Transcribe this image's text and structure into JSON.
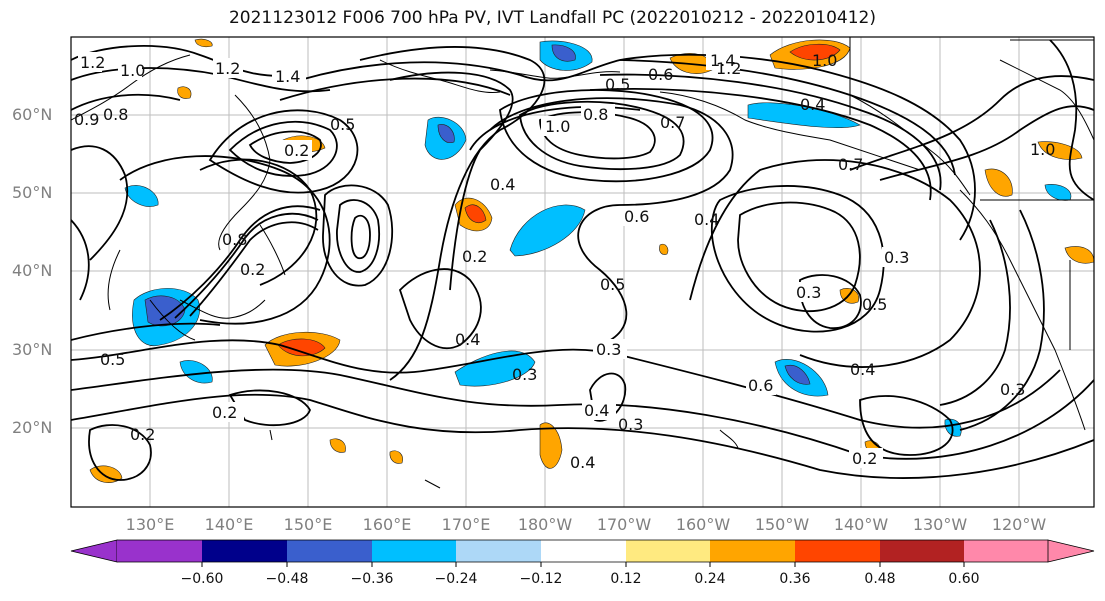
{
  "title": "2021123012 F006 700 hPa PV, IVT Landfall PC (2022010212 - 2022010412)",
  "lat_labels": [
    "60°N",
    "50°N",
    "40°N",
    "30°N",
    "20°N"
  ],
  "lon_labels": [
    "130°E",
    "140°E",
    "150°E",
    "160°E",
    "170°E",
    "180°W",
    "170°W",
    "160°W",
    "150°W",
    "140°W",
    "130°W",
    "120°W"
  ],
  "colorbar": {
    "ticks": [
      "−0.60",
      "−0.48",
      "−0.36",
      "−0.24",
      "−0.12",
      "0.12",
      "0.24",
      "0.36",
      "0.48",
      "0.60"
    ],
    "colors": [
      "#9932cc",
      "#00008b",
      "#3a5fcd",
      "#00bfff",
      "#add8f7",
      "#ffffff",
      "#ffea80",
      "#ffa500",
      "#ff4500",
      "#b22222",
      "#ff88aa"
    ]
  },
  "contour_labels": [
    {
      "text": "1.2"
    },
    {
      "text": "1.0"
    },
    {
      "text": "1.4"
    },
    {
      "text": "1.2"
    },
    {
      "text": "0.9"
    },
    {
      "text": "0.8"
    },
    {
      "text": "0.2"
    },
    {
      "text": "0.5"
    },
    {
      "text": "1.0"
    },
    {
      "text": "0.8"
    },
    {
      "text": "0.7"
    },
    {
      "text": "0.4"
    },
    {
      "text": "1.4"
    },
    {
      "text": "1.2"
    },
    {
      "text": "1.0"
    },
    {
      "text": "0.6"
    },
    {
      "text": "0.5"
    },
    {
      "text": "0.4"
    },
    {
      "text": "0.7"
    },
    {
      "text": "1.0"
    },
    {
      "text": "0.6"
    },
    {
      "text": "0.4"
    },
    {
      "text": "0.2"
    },
    {
      "text": "0.3"
    },
    {
      "text": "0.2"
    },
    {
      "text": "0.5"
    },
    {
      "text": "0.3"
    },
    {
      "text": "0.5"
    },
    {
      "text": "0.4"
    },
    {
      "text": "0.6"
    },
    {
      "text": "0.3"
    },
    {
      "text": "0.4"
    },
    {
      "text": "0.3"
    },
    {
      "text": "0.4"
    },
    {
      "text": "0.2"
    },
    {
      "text": "0.3"
    },
    {
      "text": "0.5"
    },
    {
      "text": "0.2"
    },
    {
      "text": "0.2"
    },
    {
      "text": "0.4"
    },
    {
      "text": "0.8"
    },
    {
      "text": "0.3"
    }
  ]
}
